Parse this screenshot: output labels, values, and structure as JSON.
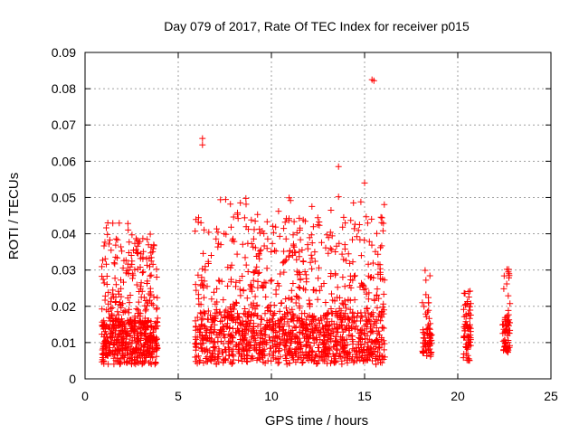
{
  "chart_data": {
    "type": "scatter",
    "title": "Day 079 of 2017, Rate Of TEC Index for receiver p015",
    "xlabel": "GPS time / hours",
    "ylabel": "ROTI / TECUs",
    "xlim": [
      0,
      25
    ],
    "ylim": [
      0,
      0.09
    ],
    "xticks": [
      "0",
      "5",
      "10",
      "15",
      "20",
      "25"
    ],
    "yticks": [
      "0",
      "0.01",
      "0.02",
      "0.03",
      "0.04",
      "0.05",
      "0.06",
      "0.07",
      "0.08",
      "0.09"
    ],
    "grid": true,
    "marker": "+",
    "color": "#ff0000",
    "clusters": [
      {
        "x_start": 0.9,
        "x_end": 3.9,
        "base_low": 0.004,
        "base_high": 0.016,
        "peak": 0.043,
        "count": 600
      },
      {
        "x_start": 5.9,
        "x_end": 16.1,
        "base_low": 0.004,
        "base_high": 0.018,
        "peak": 0.05,
        "count": 1400
      },
      {
        "x_start": 18.1,
        "x_end": 18.6,
        "base_low": 0.006,
        "base_high": 0.014,
        "peak": 0.03,
        "count": 70
      },
      {
        "x_start": 20.3,
        "x_end": 20.7,
        "base_low": 0.005,
        "base_high": 0.015,
        "peak": 0.026,
        "count": 70
      },
      {
        "x_start": 22.4,
        "x_end": 22.8,
        "base_low": 0.007,
        "base_high": 0.016,
        "peak": 0.033,
        "count": 70
      }
    ],
    "outliers": [
      {
        "x": 1.2,
        "y": 0.0398
      },
      {
        "x": 2.3,
        "y": 0.0428
      },
      {
        "x": 6.3,
        "y": 0.0663
      },
      {
        "x": 6.3,
        "y": 0.0645
      },
      {
        "x": 7.8,
        "y": 0.0482
      },
      {
        "x": 10.8,
        "y": 0.0442
      },
      {
        "x": 13.6,
        "y": 0.0585
      },
      {
        "x": 13.6,
        "y": 0.0502
      },
      {
        "x": 14.8,
        "y": 0.0488
      },
      {
        "x": 15.0,
        "y": 0.054
      },
      {
        "x": 15.4,
        "y": 0.0825
      },
      {
        "x": 15.5,
        "y": 0.0822
      }
    ]
  }
}
